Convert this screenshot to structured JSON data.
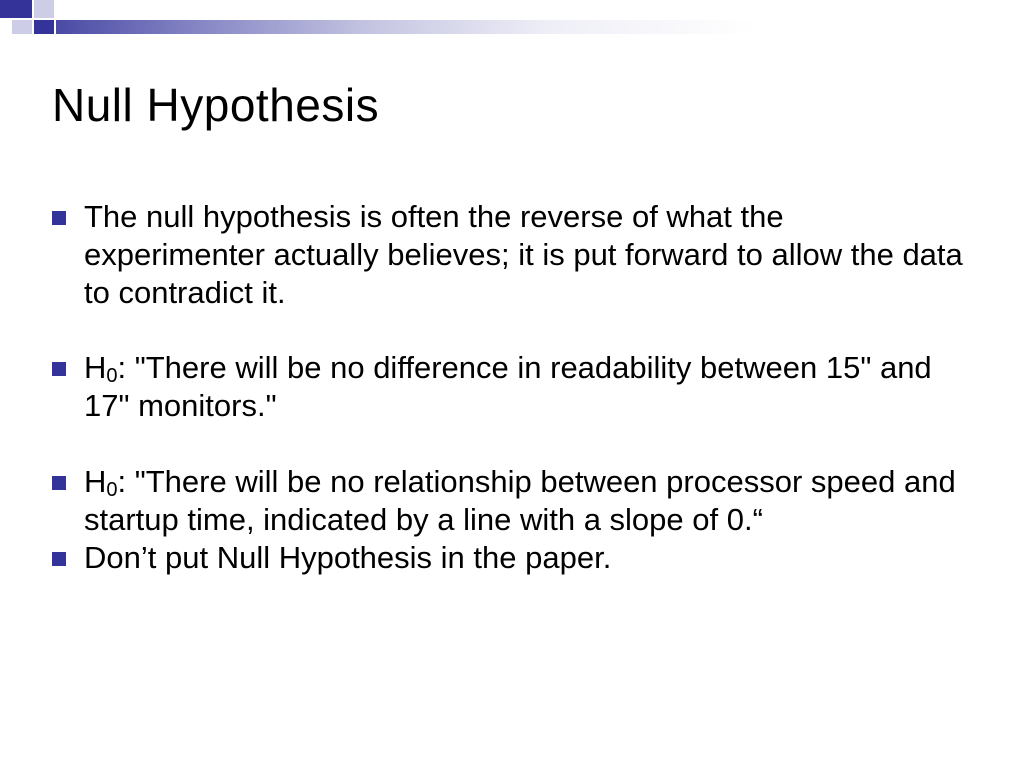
{
  "slide": {
    "title": "Null Hypothesis",
    "bullets": [
      {
        "text": "The null hypothesis is often the reverse of what the experimenter actually believes; it is put forward to allow the data to contradict it.",
        "h0": false
      },
      {
        "text": ": \"There will be no difference in readability between 15\" and 17\" monitors.\"",
        "h0": true
      },
      {
        "text": ": \"There will be no relationship between processor speed and startup time, indicated by a line with a slope of 0.“",
        "h0": true
      },
      {
        "text": "Don’t put Null Hypothesis in the paper.",
        "h0": false
      }
    ]
  },
  "style": {
    "accent_color": "#33339a",
    "accent_light": "#cdcde8",
    "background": "#ffffff",
    "text_color": "#000000",
    "title_fontsize": 46,
    "body_fontsize": 31,
    "bullet_marker_size": 14,
    "font_family": "Arial"
  }
}
